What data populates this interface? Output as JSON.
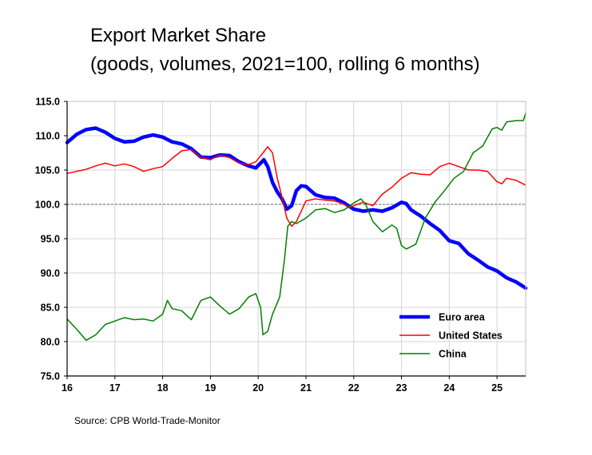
{
  "chart_data": {
    "type": "line",
    "title": "Export Market Share",
    "subtitle": "(goods, volumes, 2021=100, rolling 6 months)",
    "source": "Source: CPB World-Trade-Monitor",
    "xlabel": "",
    "ylabel": "",
    "xlim": [
      16,
      25.6
    ],
    "ylim": [
      75,
      115
    ],
    "x_ticks": [
      16,
      17,
      18,
      19,
      20,
      21,
      22,
      23,
      24,
      25
    ],
    "x_tick_labels": [
      "16",
      "17",
      "18",
      "19",
      "20",
      "21",
      "22",
      "23",
      "24",
      "25"
    ],
    "y_ticks": [
      75,
      80,
      85,
      90,
      95,
      100,
      105,
      110,
      115
    ],
    "y_tick_labels": [
      "75.0",
      "80.0",
      "85.0",
      "90.0",
      "95.0",
      "100.0",
      "105.0",
      "110.0",
      "115.0"
    ],
    "grid": true,
    "reference_line": 100,
    "legend_position": "bottom-right",
    "series": [
      {
        "name": "Euro area",
        "color": "#0000ff",
        "points": [
          [
            16.0,
            109.0
          ],
          [
            16.2,
            110.2
          ],
          [
            16.4,
            110.9
          ],
          [
            16.6,
            111.1
          ],
          [
            16.8,
            110.5
          ],
          [
            17.0,
            109.6
          ],
          [
            17.2,
            109.1
          ],
          [
            17.4,
            109.2
          ],
          [
            17.6,
            109.8
          ],
          [
            17.8,
            110.1
          ],
          [
            18.0,
            109.8
          ],
          [
            18.2,
            109.1
          ],
          [
            18.4,
            108.8
          ],
          [
            18.6,
            108.1
          ],
          [
            18.8,
            106.9
          ],
          [
            19.0,
            106.8
          ],
          [
            19.2,
            107.2
          ],
          [
            19.4,
            107.1
          ],
          [
            19.6,
            106.2
          ],
          [
            19.8,
            105.6
          ],
          [
            19.95,
            105.3
          ],
          [
            20.05,
            106.0
          ],
          [
            20.12,
            106.5
          ],
          [
            20.2,
            105.5
          ],
          [
            20.3,
            103.2
          ],
          [
            20.4,
            101.8
          ],
          [
            20.5,
            100.8
          ],
          [
            20.6,
            99.3
          ],
          [
            20.7,
            99.8
          ],
          [
            20.8,
            102.0
          ],
          [
            20.9,
            102.7
          ],
          [
            21.0,
            102.6
          ],
          [
            21.1,
            102.0
          ],
          [
            21.2,
            101.4
          ],
          [
            21.4,
            101.0
          ],
          [
            21.6,
            100.9
          ],
          [
            21.8,
            100.2
          ],
          [
            22.0,
            99.3
          ],
          [
            22.2,
            99.0
          ],
          [
            22.4,
            99.2
          ],
          [
            22.6,
            99.0
          ],
          [
            22.8,
            99.5
          ],
          [
            23.0,
            100.3
          ],
          [
            23.1,
            100.1
          ],
          [
            23.2,
            99.2
          ],
          [
            23.4,
            98.3
          ],
          [
            23.6,
            97.2
          ],
          [
            23.8,
            96.2
          ],
          [
            24.0,
            94.7
          ],
          [
            24.2,
            94.3
          ],
          [
            24.4,
            92.8
          ],
          [
            24.6,
            91.9
          ],
          [
            24.8,
            90.9
          ],
          [
            25.0,
            90.3
          ],
          [
            25.2,
            89.3
          ],
          [
            25.4,
            88.7
          ],
          [
            25.6,
            87.8
          ]
        ]
      },
      {
        "name": "United States",
        "color": "#ff0000",
        "points": [
          [
            16.0,
            104.5
          ],
          [
            16.2,
            104.8
          ],
          [
            16.4,
            105.1
          ],
          [
            16.6,
            105.6
          ],
          [
            16.8,
            106.0
          ],
          [
            17.0,
            105.6
          ],
          [
            17.2,
            105.9
          ],
          [
            17.4,
            105.5
          ],
          [
            17.6,
            104.8
          ],
          [
            17.8,
            105.2
          ],
          [
            18.0,
            105.5
          ],
          [
            18.2,
            106.7
          ],
          [
            18.4,
            107.8
          ],
          [
            18.6,
            108.0
          ],
          [
            18.8,
            106.8
          ],
          [
            19.0,
            106.5
          ],
          [
            19.2,
            107.2
          ],
          [
            19.4,
            106.8
          ],
          [
            19.6,
            106.0
          ],
          [
            19.8,
            105.8
          ],
          [
            19.95,
            106.2
          ],
          [
            20.1,
            107.5
          ],
          [
            20.2,
            108.4
          ],
          [
            20.3,
            107.5
          ],
          [
            20.4,
            103.8
          ],
          [
            20.5,
            101.0
          ],
          [
            20.6,
            98.0
          ],
          [
            20.7,
            96.8
          ],
          [
            20.8,
            97.5
          ],
          [
            20.9,
            99.0
          ],
          [
            21.0,
            100.5
          ],
          [
            21.2,
            100.8
          ],
          [
            21.4,
            100.6
          ],
          [
            21.6,
            100.5
          ],
          [
            21.8,
            100.0
          ],
          [
            21.9,
            99.5
          ],
          [
            22.0,
            99.8
          ],
          [
            22.2,
            100.3
          ],
          [
            22.4,
            99.8
          ],
          [
            22.6,
            101.5
          ],
          [
            22.8,
            102.5
          ],
          [
            23.0,
            103.8
          ],
          [
            23.2,
            104.6
          ],
          [
            23.4,
            104.4
          ],
          [
            23.6,
            104.3
          ],
          [
            23.8,
            105.5
          ],
          [
            24.0,
            106.0
          ],
          [
            24.2,
            105.5
          ],
          [
            24.4,
            105.0
          ],
          [
            24.6,
            105.0
          ],
          [
            24.8,
            104.8
          ],
          [
            25.0,
            103.3
          ],
          [
            25.1,
            103.0
          ],
          [
            25.2,
            103.8
          ],
          [
            25.4,
            103.5
          ],
          [
            25.6,
            102.8
          ]
        ]
      },
      {
        "name": "China",
        "color": "#008000",
        "points": [
          [
            16.0,
            83.3
          ],
          [
            16.2,
            81.8
          ],
          [
            16.3,
            81.0
          ],
          [
            16.4,
            80.2
          ],
          [
            16.6,
            81.0
          ],
          [
            16.8,
            82.5
          ],
          [
            17.0,
            83.0
          ],
          [
            17.2,
            83.5
          ],
          [
            17.4,
            83.2
          ],
          [
            17.6,
            83.3
          ],
          [
            17.8,
            83.0
          ],
          [
            18.0,
            84.0
          ],
          [
            18.1,
            86.0
          ],
          [
            18.2,
            84.8
          ],
          [
            18.4,
            84.5
          ],
          [
            18.6,
            83.2
          ],
          [
            18.8,
            86.0
          ],
          [
            19.0,
            86.5
          ],
          [
            19.2,
            85.2
          ],
          [
            19.4,
            84.0
          ],
          [
            19.6,
            84.8
          ],
          [
            19.8,
            86.5
          ],
          [
            19.95,
            87.0
          ],
          [
            20.05,
            85.0
          ],
          [
            20.1,
            81.0
          ],
          [
            20.2,
            81.5
          ],
          [
            20.3,
            84.0
          ],
          [
            20.45,
            86.5
          ],
          [
            20.55,
            92.0
          ],
          [
            20.62,
            96.8
          ],
          [
            20.7,
            97.5
          ],
          [
            20.8,
            97.2
          ],
          [
            21.0,
            98.0
          ],
          [
            21.2,
            99.2
          ],
          [
            21.4,
            99.4
          ],
          [
            21.6,
            98.8
          ],
          [
            21.8,
            99.2
          ],
          [
            22.0,
            100.2
          ],
          [
            22.15,
            100.8
          ],
          [
            22.25,
            100.0
          ],
          [
            22.4,
            97.5
          ],
          [
            22.6,
            96.0
          ],
          [
            22.8,
            97.0
          ],
          [
            22.9,
            96.5
          ],
          [
            23.0,
            94.0
          ],
          [
            23.1,
            93.5
          ],
          [
            23.3,
            94.2
          ],
          [
            23.5,
            98.0
          ],
          [
            23.7,
            100.3
          ],
          [
            23.9,
            102.0
          ],
          [
            24.1,
            103.8
          ],
          [
            24.3,
            104.8
          ],
          [
            24.5,
            107.5
          ],
          [
            24.7,
            108.5
          ],
          [
            24.9,
            111.0
          ],
          [
            25.0,
            111.2
          ],
          [
            25.1,
            110.8
          ],
          [
            25.2,
            112.0
          ],
          [
            25.4,
            112.2
          ],
          [
            25.55,
            112.2
          ],
          [
            25.6,
            113.3
          ]
        ]
      }
    ]
  }
}
